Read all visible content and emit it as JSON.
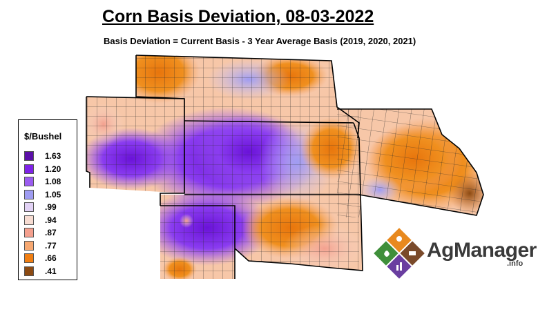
{
  "title": "Corn Basis Deviation, 08-03-2022",
  "subtitle": "Basis Deviation = Current Basis - 3 Year Average Basis (2019, 2020, 2021)",
  "legend": {
    "title": "$/Bushel",
    "items": [
      {
        "label": "1.63",
        "color": "#5b0fa8"
      },
      {
        "label": "1.20",
        "color": "#7f22e8"
      },
      {
        "label": "1.08",
        "color": "#9b5cf0"
      },
      {
        "label": "1.05",
        "color": "#9f9cf2"
      },
      {
        "label": ".99",
        "color": "#e2d2f5"
      },
      {
        "label": ".94",
        "color": "#f7dcd2"
      },
      {
        "label": ".87",
        "color": "#f4a08e"
      },
      {
        "label": ".77",
        "color": "#f7a871"
      },
      {
        "label": ".66",
        "color": "#f07e12"
      },
      {
        "label": ".41",
        "color": "#8c4a12"
      }
    ]
  },
  "logo": {
    "name": "AgManager",
    "suffix": ".info",
    "colors": {
      "orange": "#e8891e",
      "green": "#3f8f3a",
      "brown": "#7a4a2a",
      "purple": "#6a3ea0"
    }
  },
  "map": {
    "grid_color": "#2a2a2a",
    "border_color": "#000000"
  }
}
